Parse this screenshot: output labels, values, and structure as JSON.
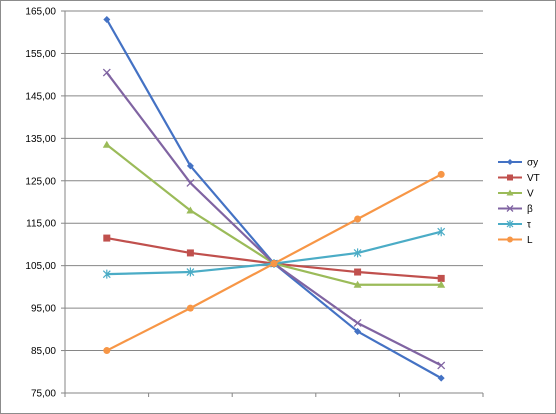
{
  "chart_data": {
    "type": "line",
    "title": "",
    "xlabel": "",
    "ylabel": "",
    "ylim": [
      75,
      165
    ],
    "ytick_step": 10,
    "y_tick_labels": [
      "75,00",
      "85,00",
      "95,00",
      "105,00",
      "115,00",
      "125,00",
      "135,00",
      "145,00",
      "155,00",
      "165,00"
    ],
    "x_points": 5,
    "grid": "horizontal",
    "legend_position": "right",
    "series": [
      {
        "name": "σy",
        "color": "#4472C4",
        "marker": "diamond",
        "values": [
          163.0,
          128.5,
          105.5,
          89.5,
          78.5
        ]
      },
      {
        "name": "VT",
        "color": "#C0504D",
        "marker": "square",
        "values": [
          111.5,
          108.0,
          105.5,
          103.5,
          102.0
        ]
      },
      {
        "name": "V",
        "color": "#9BBB59",
        "marker": "triangle",
        "values": [
          133.5,
          118.0,
          105.5,
          100.5,
          100.5
        ]
      },
      {
        "name": "β",
        "color": "#8064A2",
        "marker": "x",
        "values": [
          150.5,
          124.5,
          105.5,
          91.5,
          81.5
        ]
      },
      {
        "name": "τ",
        "color": "#4BACC6",
        "marker": "star",
        "values": [
          103.0,
          103.5,
          105.5,
          108.0,
          113.0
        ]
      },
      {
        "name": "L",
        "color": "#F79646",
        "marker": "circle",
        "values": [
          85.0,
          95.0,
          105.5,
          116.0,
          126.5
        ]
      }
    ]
  }
}
